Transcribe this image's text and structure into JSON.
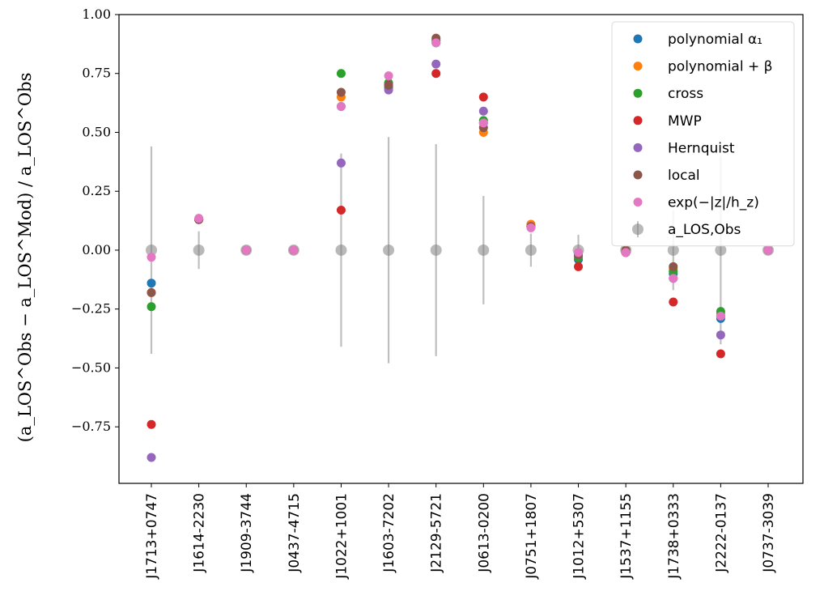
{
  "chart_data": {
    "type": "scatter",
    "title": "",
    "xlabel": "",
    "ylabel": "(a_LOS^Obs − a_LOS^Mod) / a_LOS^Obs",
    "ylim": [
      -0.99,
      1.0
    ],
    "yticks": [
      -0.75,
      -0.5,
      -0.25,
      0.0,
      0.25,
      0.5,
      0.75,
      1.0
    ],
    "ytick_labels": [
      "−0.75",
      "−0.50",
      "−0.25",
      "0.00",
      "0.25",
      "0.50",
      "0.75",
      "1.00"
    ],
    "categories": [
      "J1713+0747",
      "J1614-2230",
      "J1909-3744",
      "J0437-4715",
      "J1022+1001",
      "J1603-7202",
      "J2129-5721",
      "J0613-0200",
      "J0751+1807",
      "J1012+5307",
      "J1537+1155",
      "J1738+0333",
      "J2222-0137",
      "J0737-3039"
    ],
    "grid": false,
    "legend_position": "top-right",
    "series": [
      {
        "name": "polynomial α₁",
        "color": "#1f77b4",
        "values": [
          -0.14,
          0.13,
          0.0,
          0.0,
          0.61,
          0.69,
          0.88,
          0.54,
          0.1,
          -0.04,
          -0.01,
          -0.1,
          -0.29,
          0.0
        ]
      },
      {
        "name": "polynomial + β",
        "color": "#ff7f0e",
        "values": [
          -0.18,
          0.13,
          0.0,
          0.0,
          0.65,
          0.7,
          0.89,
          0.5,
          0.11,
          -0.03,
          -0.01,
          -0.08,
          -0.27,
          0.0
        ]
      },
      {
        "name": "cross",
        "color": "#2ca02c",
        "values": [
          -0.24,
          0.13,
          0.0,
          0.0,
          0.75,
          0.71,
          0.89,
          0.55,
          0.1,
          -0.03,
          -0.01,
          -0.09,
          -0.26,
          0.0
        ]
      },
      {
        "name": "MWP",
        "color": "#d62728",
        "values": [
          -0.74,
          0.13,
          0.0,
          0.0,
          0.17,
          0.7,
          0.75,
          0.65,
          0.1,
          -0.07,
          -0.01,
          -0.22,
          -0.44,
          0.0
        ]
      },
      {
        "name": "Hernquist",
        "color": "#9467bd",
        "values": [
          -0.88,
          0.13,
          0.0,
          0.0,
          0.37,
          0.68,
          0.79,
          0.59,
          0.1,
          -0.02,
          -0.01,
          -0.12,
          -0.36,
          0.0
        ]
      },
      {
        "name": "local",
        "color": "#8c564b",
        "values": [
          -0.18,
          0.13,
          0.0,
          0.0,
          0.67,
          0.7,
          0.9,
          0.52,
          0.1,
          -0.02,
          0.0,
          -0.07,
          -0.28,
          0.0
        ]
      },
      {
        "name": "exp(−|z|/h_z)",
        "color": "#e377c2",
        "values": [
          -0.03,
          0.135,
          0.0,
          0.0,
          0.61,
          0.74,
          0.88,
          0.54,
          0.095,
          -0.01,
          -0.01,
          -0.12,
          -0.28,
          0.0
        ]
      }
    ],
    "observed": {
      "name": "a_LOS,Obs",
      "color": "#808080",
      "values": [
        0.0,
        0.0,
        0.0,
        0.0,
        0.0,
        0.0,
        0.0,
        0.0,
        0.0,
        0.0,
        0.0,
        0.0,
        0.0,
        0.0
      ],
      "errors": [
        0.44,
        0.08,
        0.003,
        0.003,
        0.41,
        0.48,
        0.45,
        0.23,
        0.07,
        0.065,
        0.01,
        0.17,
        0.4,
        0.003
      ]
    }
  }
}
